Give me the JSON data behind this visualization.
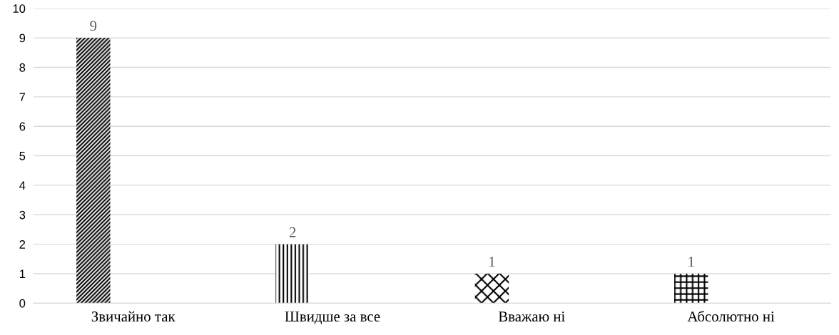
{
  "chart_data": {
    "type": "bar",
    "categories": [
      "Звичайно так",
      "Швидше за все",
      "Вважаю ні",
      "Абсолютно ні"
    ],
    "values": [
      9,
      2,
      1,
      1
    ],
    "color": "#000000",
    "ylim": [
      0,
      10
    ],
    "yticks": [
      0,
      1,
      2,
      3,
      4,
      5,
      6,
      7,
      8,
      9,
      10
    ],
    "grid": "y",
    "data_labels": true,
    "legend": false
  }
}
